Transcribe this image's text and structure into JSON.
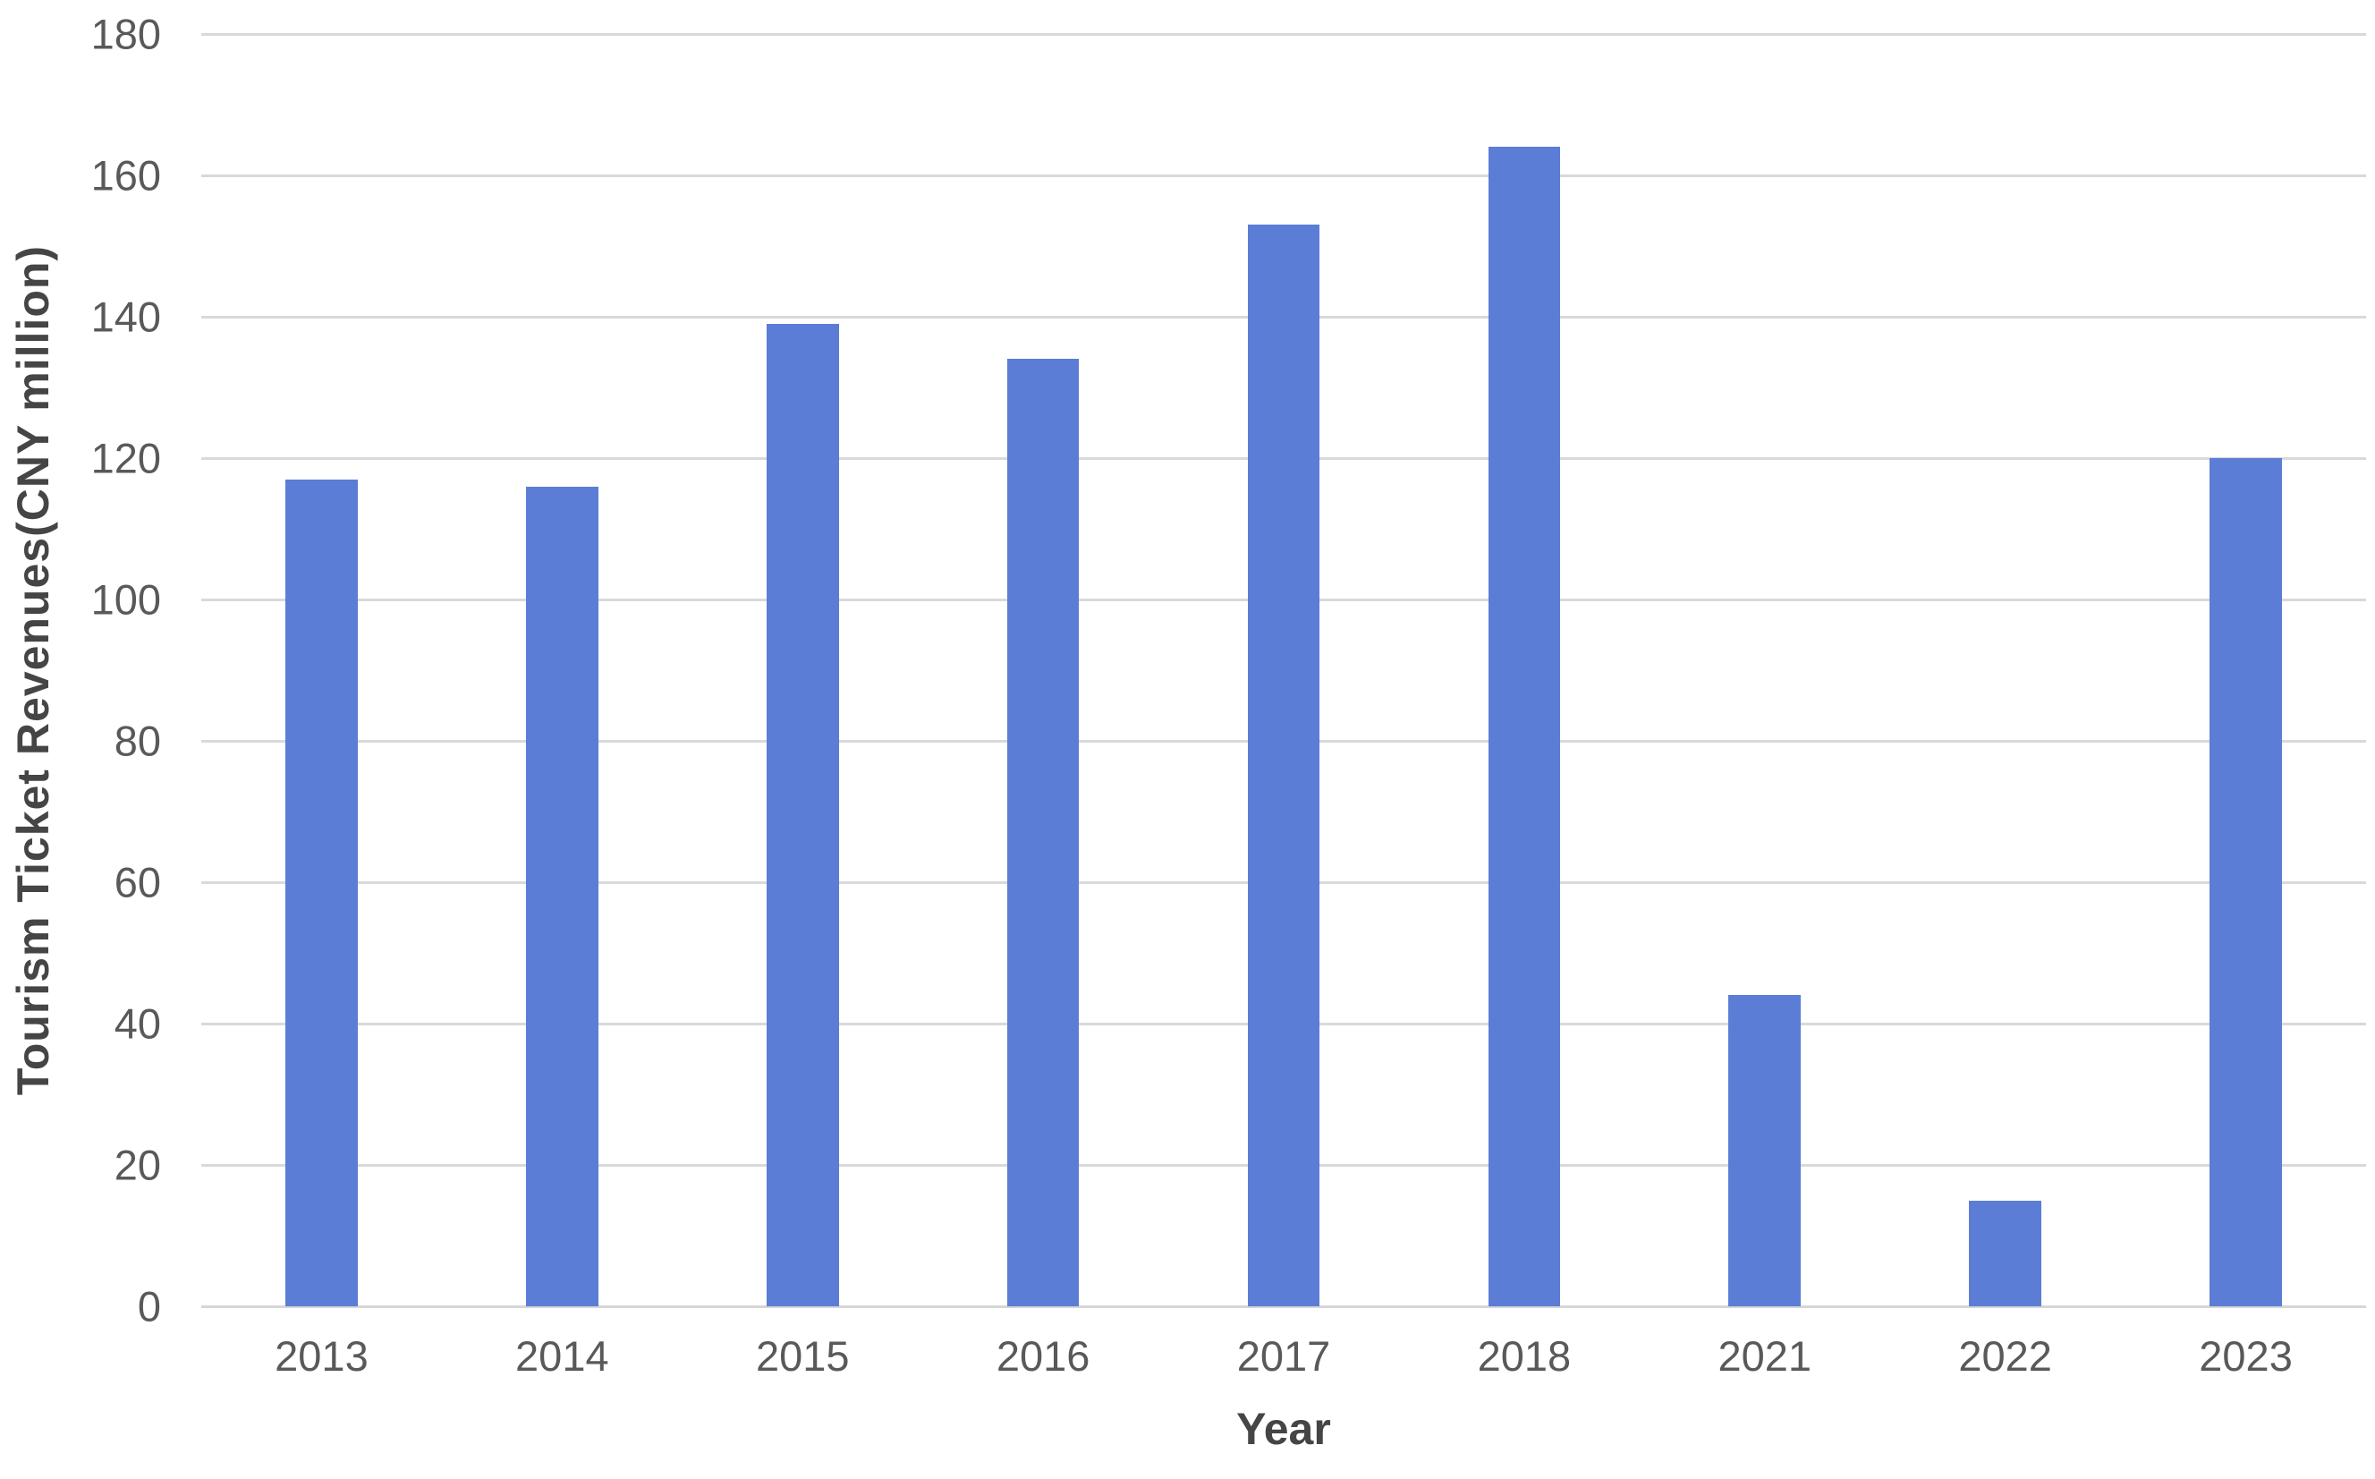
{
  "chart_data": {
    "type": "bar",
    "title": "",
    "categories": [
      "2013",
      "2014",
      "2015",
      "2016",
      "2017",
      "2018",
      "2021",
      "2022",
      "2023"
    ],
    "values": [
      117,
      116,
      139,
      134,
      153,
      164,
      44,
      15,
      120
    ],
    "series_name": "Tourism Ticket Revenues",
    "xlabel": "Year",
    "ylabel": "Tourism Ticket Revenues(CNY million)",
    "ylim": [
      0,
      180
    ],
    "yticks": [
      180,
      160,
      140,
      120,
      100,
      80,
      60,
      40,
      20,
      0
    ],
    "grid": "horizontal gridlines on, vertical off",
    "legend_position": "none"
  },
  "colors": {
    "bar": "#5c7dd6",
    "gridline": "#d9d9d9",
    "axis_line": "#d6d6d6",
    "tick_label": "#595959",
    "axis_title": "#454545",
    "background": "#ffffff"
  }
}
